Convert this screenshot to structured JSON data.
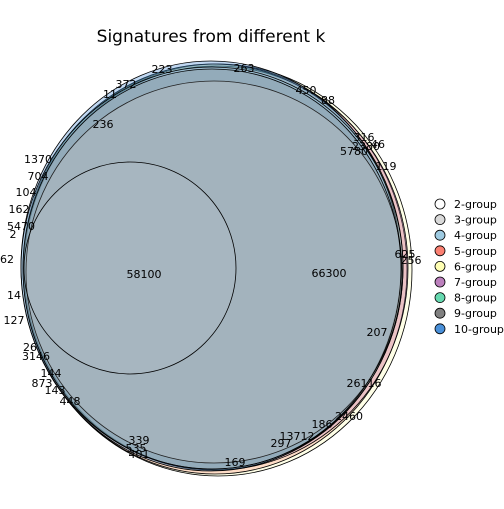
{
  "chart_data": {
    "type": "venn",
    "title": "Signatures from different k",
    "legend": {
      "placement": "right",
      "items": [
        {
          "label": "2-group",
          "color": "#ffffff"
        },
        {
          "label": "3-group",
          "color": "#d9d9d9"
        },
        {
          "label": "4-group",
          "color": "#9ecae1"
        },
        {
          "label": "5-group",
          "color": "#fb8072"
        },
        {
          "label": "6-group",
          "color": "#ffffb3"
        },
        {
          "label": "7-group",
          "color": "#bc80bd"
        },
        {
          "label": "8-group",
          "color": "#66d9b0"
        },
        {
          "label": "9-group",
          "color": "#808080"
        },
        {
          "label": "10-group",
          "color": "#4a90d9"
        }
      ]
    },
    "region_values": [
      "223",
      "263",
      "372",
      "11",
      "450",
      "88",
      "236",
      "316",
      "2380",
      "46",
      "5780",
      "119",
      "1370",
      "704",
      "104",
      "162",
      "5470",
      "2",
      "58100",
      "66300",
      "625",
      "256",
      "62",
      "14",
      "127",
      "26",
      "3146",
      "144",
      "873",
      "143",
      "448",
      "207",
      "26116",
      "2460",
      "186",
      "13712",
      "297",
      "339",
      "535",
      "401",
      "169"
    ]
  }
}
